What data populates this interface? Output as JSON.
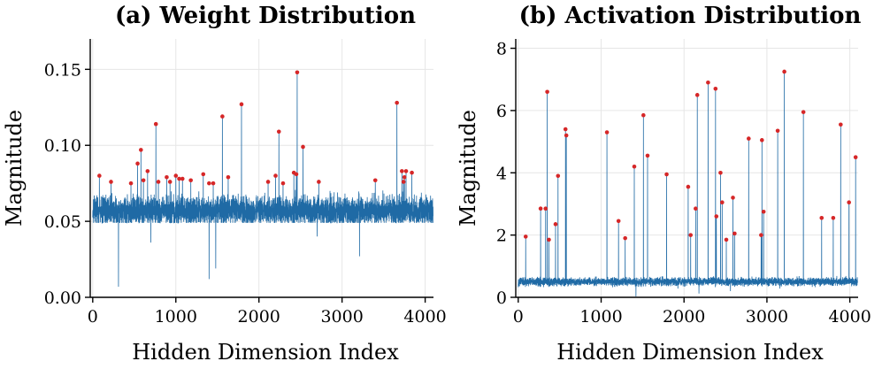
{
  "chart_data": [
    {
      "id": "weight",
      "type": "line",
      "title": "(a) Weight Distribution",
      "xlabel": "Hidden Dimension Index",
      "ylabel": "Magnitude",
      "xlim": [
        -30,
        4100
      ],
      "ylim": [
        0.0,
        0.17
      ],
      "xticks": [
        0,
        1000,
        2000,
        3000,
        4000
      ],
      "yticks": [
        0.0,
        0.05,
        0.1,
        0.15
      ],
      "ytick_labels": [
        "0.00",
        "0.05",
        "0.10",
        "0.15"
      ],
      "grid": true,
      "series_color": "#1f6aa5",
      "outlier_color": "#d62728",
      "noise": {
        "n": 4096,
        "base": 0.057,
        "amp": 0.0075,
        "min": 0.049,
        "max": 0.072,
        "seed": 7
      },
      "dips": [
        {
          "x": 310,
          "y": 0.007
        },
        {
          "x": 1400,
          "y": 0.012
        },
        {
          "x": 1480,
          "y": 0.019
        },
        {
          "x": 3210,
          "y": 0.027
        },
        {
          "x": 700,
          "y": 0.036
        },
        {
          "x": 2700,
          "y": 0.04
        }
      ],
      "outliers": [
        {
          "x": 80,
          "y": 0.08
        },
        {
          "x": 220,
          "y": 0.076
        },
        {
          "x": 460,
          "y": 0.075
        },
        {
          "x": 540,
          "y": 0.088
        },
        {
          "x": 580,
          "y": 0.097
        },
        {
          "x": 610,
          "y": 0.077
        },
        {
          "x": 660,
          "y": 0.083
        },
        {
          "x": 760,
          "y": 0.114
        },
        {
          "x": 790,
          "y": 0.076
        },
        {
          "x": 890,
          "y": 0.079
        },
        {
          "x": 930,
          "y": 0.076
        },
        {
          "x": 1000,
          "y": 0.08
        },
        {
          "x": 1040,
          "y": 0.078
        },
        {
          "x": 1080,
          "y": 0.078
        },
        {
          "x": 1180,
          "y": 0.077
        },
        {
          "x": 1330,
          "y": 0.081
        },
        {
          "x": 1400,
          "y": 0.075
        },
        {
          "x": 1450,
          "y": 0.075
        },
        {
          "x": 1560,
          "y": 0.119
        },
        {
          "x": 1630,
          "y": 0.079
        },
        {
          "x": 1790,
          "y": 0.127
        },
        {
          "x": 2110,
          "y": 0.076
        },
        {
          "x": 2200,
          "y": 0.08
        },
        {
          "x": 2240,
          "y": 0.109
        },
        {
          "x": 2290,
          "y": 0.075
        },
        {
          "x": 2420,
          "y": 0.082
        },
        {
          "x": 2450,
          "y": 0.081
        },
        {
          "x": 2460,
          "y": 0.148
        },
        {
          "x": 2530,
          "y": 0.099
        },
        {
          "x": 2720,
          "y": 0.076
        },
        {
          "x": 3400,
          "y": 0.077
        },
        {
          "x": 3660,
          "y": 0.128
        },
        {
          "x": 3720,
          "y": 0.083
        },
        {
          "x": 3740,
          "y": 0.076
        },
        {
          "x": 3750,
          "y": 0.079
        },
        {
          "x": 3770,
          "y": 0.083
        },
        {
          "x": 3840,
          "y": 0.082
        }
      ]
    },
    {
      "id": "activation",
      "type": "line",
      "title": "(b) Activation Distribution",
      "xlabel": "Hidden Dimension Index",
      "ylabel": "Magnitude",
      "xlim": [
        -30,
        4100
      ],
      "ylim": [
        0,
        8.3
      ],
      "xticks": [
        0,
        1000,
        2000,
        3000,
        4000
      ],
      "yticks": [
        0,
        2,
        4,
        6,
        8
      ],
      "ytick_labels": [
        "0",
        "2",
        "4",
        "6",
        "8"
      ],
      "grid": true,
      "series_color": "#1f6aa5",
      "outlier_color": "#d62728",
      "noise": {
        "n": 4096,
        "base": 0.5,
        "amp": 0.1,
        "min": 0.28,
        "max": 0.75,
        "seed": 13
      },
      "dips": [
        {
          "x": 1420,
          "y": 0.03
        },
        {
          "x": 2180,
          "y": 0.12
        },
        {
          "x": 2560,
          "y": 0.2
        }
      ],
      "outliers": [
        {
          "x": 90,
          "y": 1.95
        },
        {
          "x": 270,
          "y": 2.85
        },
        {
          "x": 330,
          "y": 2.85
        },
        {
          "x": 350,
          "y": 6.6
        },
        {
          "x": 370,
          "y": 1.85
        },
        {
          "x": 450,
          "y": 2.35
        },
        {
          "x": 480,
          "y": 3.9
        },
        {
          "x": 570,
          "y": 5.4
        },
        {
          "x": 580,
          "y": 5.2
        },
        {
          "x": 1070,
          "y": 5.3
        },
        {
          "x": 1210,
          "y": 2.45
        },
        {
          "x": 1290,
          "y": 1.9
        },
        {
          "x": 1400,
          "y": 4.2
        },
        {
          "x": 1510,
          "y": 5.85
        },
        {
          "x": 1560,
          "y": 4.55
        },
        {
          "x": 1790,
          "y": 3.95
        },
        {
          "x": 2050,
          "y": 3.55
        },
        {
          "x": 2080,
          "y": 2.0
        },
        {
          "x": 2140,
          "y": 2.85
        },
        {
          "x": 2160,
          "y": 6.5
        },
        {
          "x": 2290,
          "y": 6.9
        },
        {
          "x": 2380,
          "y": 6.7
        },
        {
          "x": 2390,
          "y": 2.6
        },
        {
          "x": 2440,
          "y": 4.0
        },
        {
          "x": 2460,
          "y": 3.05
        },
        {
          "x": 2510,
          "y": 1.85
        },
        {
          "x": 2590,
          "y": 3.2
        },
        {
          "x": 2610,
          "y": 2.05
        },
        {
          "x": 2780,
          "y": 5.1
        },
        {
          "x": 2930,
          "y": 2.0
        },
        {
          "x": 2940,
          "y": 5.05
        },
        {
          "x": 2960,
          "y": 2.75
        },
        {
          "x": 3130,
          "y": 5.35
        },
        {
          "x": 3210,
          "y": 7.25
        },
        {
          "x": 3440,
          "y": 5.95
        },
        {
          "x": 3660,
          "y": 2.55
        },
        {
          "x": 3800,
          "y": 2.55
        },
        {
          "x": 3890,
          "y": 5.55
        },
        {
          "x": 3990,
          "y": 3.05
        },
        {
          "x": 4070,
          "y": 4.5
        }
      ]
    }
  ]
}
